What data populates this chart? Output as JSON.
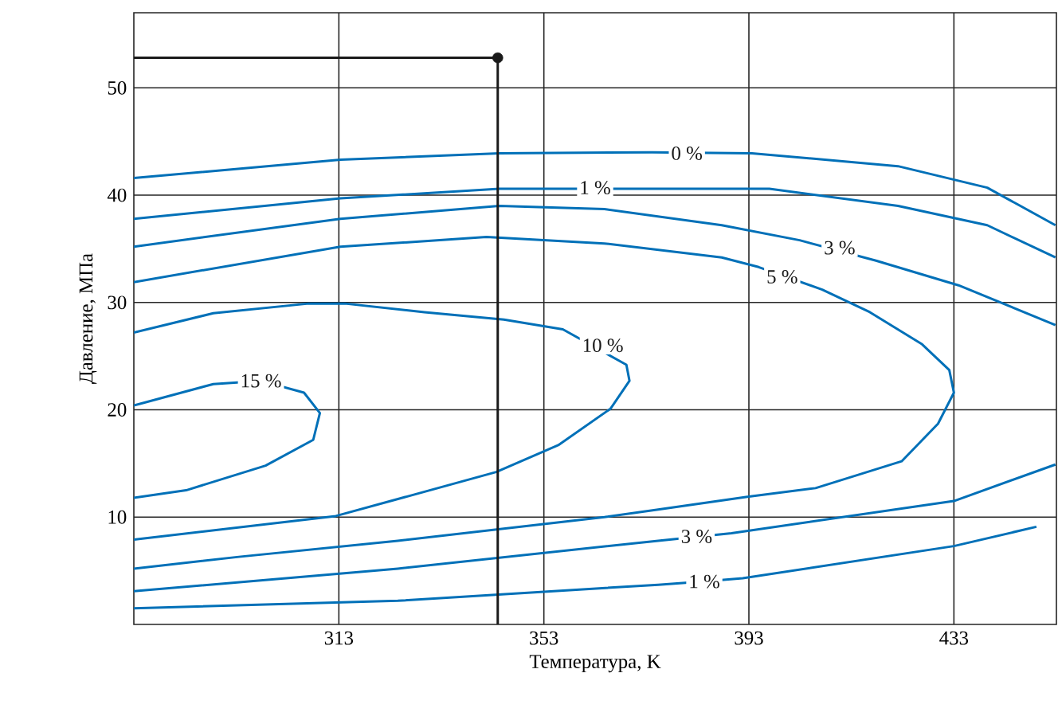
{
  "chart_data": {
    "type": "line",
    "xlabel": "Температура, K",
    "ylabel": "Давление, МПа",
    "xlim": [
      273,
      453
    ],
    "ylim": [
      0,
      57
    ],
    "xticks": [
      313,
      353,
      393,
      433
    ],
    "yticks": [
      10,
      20,
      30,
      40,
      50
    ],
    "grid": true,
    "line_style": "solid",
    "series": [
      {
        "color": "#0070b8",
        "x": [
          273,
          313.3,
          344.3,
          374.1,
          393.6,
          422.1,
          439.5,
          452.8
        ],
        "values": [
          41.6,
          43.3,
          43.9,
          44.0,
          43.9,
          42.7,
          40.7,
          37.2
        ]
      },
      {
        "color": "#0070b8",
        "x": [
          273,
          313.3,
          344.3,
          397.0,
          422.1,
          439.5,
          452.8
        ],
        "values": [
          37.8,
          39.7,
          40.6,
          40.6,
          39.0,
          37.2,
          34.2
        ]
      },
      {
        "color": "#0070b8",
        "x": [
          273,
          313.3,
          344.3,
          364.8,
          387.7,
          402.9,
          417.8,
          433.9,
          452.8
        ],
        "values": [
          35.2,
          37.8,
          39.0,
          38.7,
          37.2,
          35.8,
          33.9,
          31.6,
          27.9
        ]
      },
      {
        "color": "#0070b8",
        "x": [
          273,
          324.5,
          375.3,
          384.3,
          391.8,
          433,
          449.1
        ],
        "values": [
          1.5,
          2.2,
          3.7,
          4.0,
          4.3,
          7.3,
          9.1
        ]
      },
      {
        "color": "#0070b8",
        "x": [
          273,
          324.5,
          375.3,
          389.6,
          433,
          452.8
        ],
        "values": [
          3.1,
          5.2,
          7.8,
          8.5,
          11.5,
          14.9
        ]
      },
      {
        "color": "#0070b8",
        "x": [
          273,
          313.3,
          341.8,
          364.8,
          387.7,
          394.9,
          407.3,
          416.6,
          426.8,
          432.1,
          433,
          429.9,
          422.8,
          406.0,
          392.7,
          375.3,
          364.8,
          324.5,
          293.5,
          273
        ],
        "values": [
          31.9,
          35.2,
          36.1,
          35.5,
          34.2,
          33.3,
          31.2,
          29.1,
          26.1,
          23.7,
          21.6,
          18.7,
          15.2,
          12.7,
          11.9,
          10.7,
          10.0,
          7.8,
          6.3,
          5.2
        ]
      },
      {
        "color": "#0070b8",
        "x": [
          273,
          288.5,
          307.1,
          314.2,
          329.7,
          345.2,
          356.7,
          369.1,
          369.7,
          366.0,
          355.8,
          343.7,
          312.4,
          273
        ],
        "values": [
          27.2,
          29.0,
          29.9,
          29.9,
          29.1,
          28.4,
          27.5,
          24.2,
          22.7,
          20.1,
          16.7,
          14.2,
          10.1,
          7.9
        ]
      },
      {
        "color": "#0070b8",
        "x": [
          273,
          288.5,
          297.8,
          306.2,
          309.3,
          308.0,
          298.7,
          283.2,
          273
        ],
        "values": [
          20.4,
          22.4,
          22.7,
          21.6,
          19.7,
          17.2,
          14.8,
          12.5,
          11.8
        ]
      },
      {
        "color": "#1a1a1a",
        "x": [
          273,
          344,
          344
        ],
        "values": [
          52.8,
          52.8,
          0
        ]
      },
      {
        "type": "scatter",
        "marker": "circle",
        "color": "#1a1a1a",
        "x": [
          344
        ],
        "values": [
          52.8
        ]
      }
    ],
    "annotations": [
      {
        "text": "0 %",
        "x": 380.9,
        "y": 43.9
      },
      {
        "text": "1 %",
        "x": 363.0,
        "y": 40.7
      },
      {
        "text": "3 %",
        "x": 410.7,
        "y": 35.1
      },
      {
        "text": "5 %",
        "x": 399.5,
        "y": 32.4
      },
      {
        "text": "10 %",
        "x": 364.5,
        "y": 26.0
      },
      {
        "text": "15 %",
        "x": 297.8,
        "y": 22.7
      },
      {
        "text": "3 %",
        "x": 382.8,
        "y": 8.2
      },
      {
        "text": "1 %",
        "x": 384.3,
        "y": 4.0
      }
    ]
  }
}
